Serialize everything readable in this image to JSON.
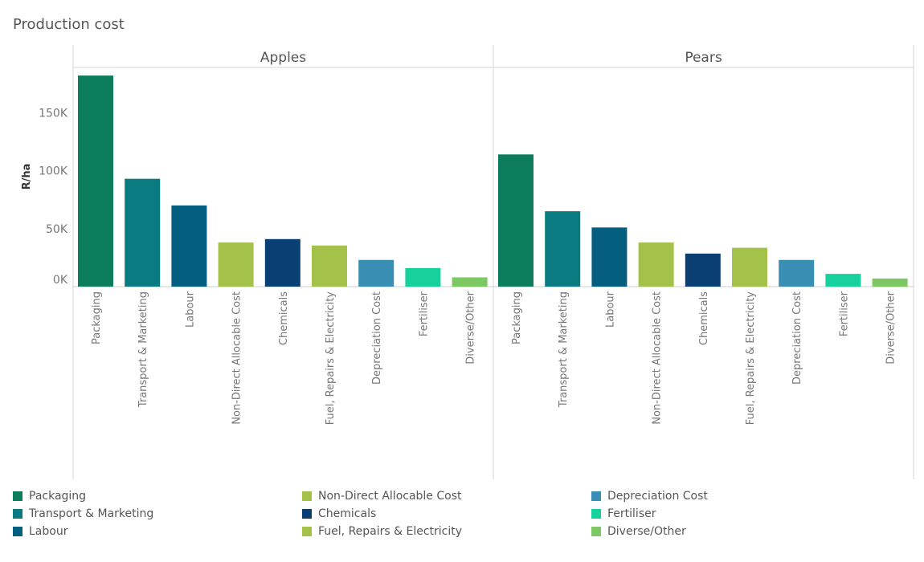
{
  "title": "Production cost",
  "chart_data": {
    "type": "bar",
    "title": "Production cost",
    "ylabel": "R/ha",
    "ylim": [
      0,
      180000
    ],
    "yticks": [
      0,
      50000,
      100000,
      150000
    ],
    "ytick_labels": [
      "0K",
      "50K",
      "100K",
      "150K"
    ],
    "gridlines": false,
    "legend_position": "bottom",
    "categories": [
      "Packaging",
      "Transport & Marketing",
      "Labour",
      "Non-Direct Allocable Cost",
      "Chemicals",
      "Fuel, Repairs & Electricity",
      "Depreciation Cost",
      "Fertiliser",
      "Diverse/Other"
    ],
    "colors": [
      "#0b7c5c",
      "#0a7b80",
      "#045e80",
      "#a4c24a",
      "#0a3f73",
      "#a4c24a",
      "#388fb3",
      "#16d19b",
      "#7dc862"
    ],
    "panels": [
      {
        "name": "Apples",
        "values": [
          182000,
          93000,
          70000,
          38000,
          41000,
          35500,
          23000,
          16000,
          8000
        ]
      },
      {
        "name": "Pears",
        "values": [
          114000,
          65000,
          51000,
          38000,
          28500,
          33500,
          23000,
          11000,
          7000
        ]
      }
    ]
  }
}
